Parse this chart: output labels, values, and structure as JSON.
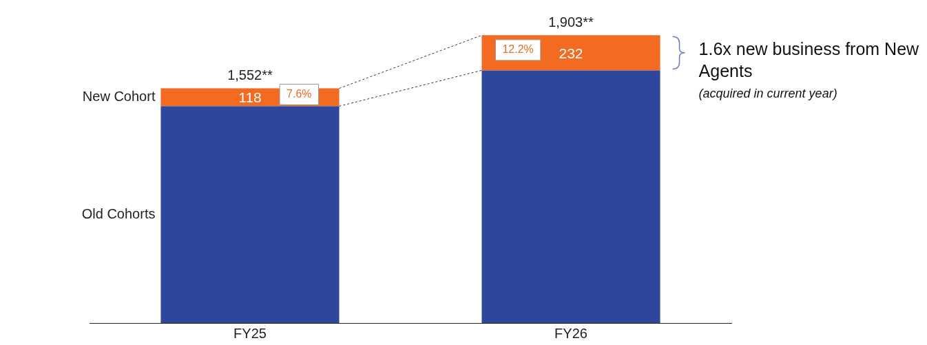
{
  "chart_data": {
    "type": "bar",
    "categories": [
      "FY25",
      "FY26"
    ],
    "stacked": true,
    "series": [
      {
        "name": "Old Cohorts",
        "color": "#2e479b",
        "values": [
          1434,
          1671
        ]
      },
      {
        "name": "New Cohort",
        "color": "#f26b21",
        "values": [
          118,
          232
        ],
        "value_labels": [
          "118",
          "232"
        ]
      }
    ],
    "totals": [
      "1,552**",
      "1,903**"
    ],
    "tick_labels": "x",
    "legend": false,
    "annotations": [
      "7.6%",
      "12.2%",
      "1.6x new business from New Agents",
      "(acquired in current year)"
    ]
  }
}
